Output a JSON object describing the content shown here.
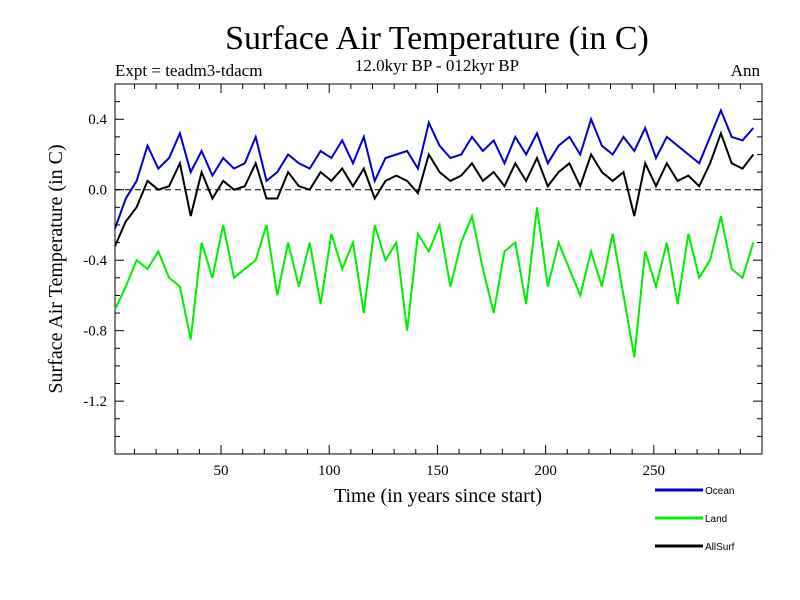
{
  "chart_data": {
    "type": "line",
    "title": "Surface Air Temperature (in C)",
    "subtitle": "12.0kyr BP - 012kyr BP",
    "left_note": "Expt = teadm3-tdacm",
    "right_note": "Ann",
    "xlabel": "Time (in years since start)",
    "ylabel": "Surface Air Temperature (in C)",
    "xlim": [
      1,
      300
    ],
    "ylim": [
      -1.5,
      0.6
    ],
    "xticks": [
      50,
      100,
      150,
      200,
      250
    ],
    "yticks": [
      0.4,
      0.0,
      -0.4,
      -0.8,
      -1.2
    ],
    "ytick_labels": [
      "0.4",
      "0.0",
      "-0.4",
      "-0.8",
      "-1.2"
    ],
    "reference_line": 0.0,
    "series": [
      {
        "name": "Ocean",
        "color": "#0000cc",
        "x_start": 1,
        "x_step": 5,
        "values": [
          -0.22,
          -0.05,
          0.05,
          0.25,
          0.12,
          0.18,
          0.32,
          0.1,
          0.22,
          0.08,
          0.18,
          0.12,
          0.15,
          0.3,
          0.05,
          0.1,
          0.2,
          0.15,
          0.12,
          0.22,
          0.18,
          0.28,
          0.15,
          0.3,
          0.05,
          0.18,
          0.2,
          0.22,
          0.12,
          0.38,
          0.25,
          0.18,
          0.2,
          0.3,
          0.22,
          0.28,
          0.15,
          0.3,
          0.2,
          0.32,
          0.15,
          0.25,
          0.3,
          0.2,
          0.4,
          0.25,
          0.2,
          0.3,
          0.22,
          0.35,
          0.18,
          0.3,
          0.25,
          0.2,
          0.15,
          0.3,
          0.45,
          0.3,
          0.28,
          0.35
        ]
      },
      {
        "name": "Land",
        "color": "#00ee00",
        "x_start": 1,
        "x_step": 5,
        "values": [
          -0.68,
          -0.55,
          -0.4,
          -0.45,
          -0.35,
          -0.5,
          -0.55,
          -0.85,
          -0.3,
          -0.5,
          -0.2,
          -0.5,
          -0.45,
          -0.4,
          -0.2,
          -0.6,
          -0.3,
          -0.55,
          -0.3,
          -0.65,
          -0.25,
          -0.45,
          -0.3,
          -0.7,
          -0.2,
          -0.4,
          -0.3,
          -0.8,
          -0.25,
          -0.35,
          -0.2,
          -0.55,
          -0.3,
          -0.15,
          -0.45,
          -0.7,
          -0.35,
          -0.3,
          -0.65,
          -0.1,
          -0.55,
          -0.3,
          -0.45,
          -0.6,
          -0.35,
          -0.55,
          -0.25,
          -0.6,
          -0.95,
          -0.35,
          -0.55,
          -0.3,
          -0.65,
          -0.25,
          -0.5,
          -0.4,
          -0.15,
          -0.45,
          -0.5,
          -0.3
        ]
      },
      {
        "name": "AllSurf",
        "color": "#000000",
        "x_start": 1,
        "x_step": 5,
        "values": [
          -0.32,
          -0.18,
          -0.1,
          0.05,
          0.0,
          0.02,
          0.15,
          -0.15,
          0.1,
          -0.05,
          0.05,
          0.0,
          0.02,
          0.15,
          -0.05,
          -0.05,
          0.1,
          0.02,
          0.0,
          0.1,
          0.05,
          0.12,
          0.02,
          0.12,
          -0.05,
          0.05,
          0.08,
          0.05,
          -0.02,
          0.2,
          0.1,
          0.05,
          0.08,
          0.15,
          0.05,
          0.1,
          0.02,
          0.15,
          0.05,
          0.18,
          0.02,
          0.1,
          0.15,
          0.02,
          0.2,
          0.1,
          0.05,
          0.1,
          -0.15,
          0.15,
          0.02,
          0.15,
          0.05,
          0.08,
          0.02,
          0.15,
          0.32,
          0.15,
          0.12,
          0.2
        ]
      }
    ],
    "legend": [
      {
        "label": "Ocean",
        "color": "#0000cc"
      },
      {
        "label": "Land",
        "color": "#00ee00"
      },
      {
        "label": "AllSurf",
        "color": "#000000"
      }
    ]
  }
}
